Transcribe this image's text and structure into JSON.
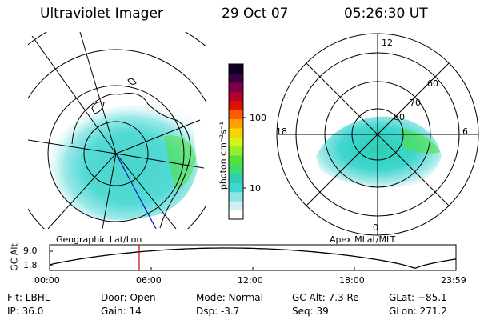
{
  "header": {
    "instrument": "Ultraviolet Imager",
    "date": "29 Oct 07",
    "time": "05:26:30 UT"
  },
  "left_map": {
    "label": "Geographic Lat/Lon"
  },
  "right_map": {
    "label": "Apex MLat/MLT",
    "mlt_labels": [
      "12",
      "18",
      "6",
      "0"
    ],
    "mlat_labels": [
      "60",
      "70",
      "80"
    ]
  },
  "colorbar": {
    "unit_label": "photon cm⁻²s⁻¹",
    "scale": "log",
    "tick_labels": [
      "100",
      "10"
    ],
    "colors": [
      "#ffffff",
      "#cfeff3",
      "#8fe6e6",
      "#3fd6cf",
      "#2ccfb2",
      "#3fdb70",
      "#52e23a",
      "#98ec2c",
      "#d8f21b",
      "#f6d400",
      "#ffa000",
      "#ff5a00",
      "#e01000",
      "#b3002e",
      "#7d0046",
      "#3a0044",
      "#10001f"
    ]
  },
  "altitude_panel": {
    "ylabel": "GC Alt",
    "y_ticks": [
      "9.0",
      "1.8"
    ],
    "x_ticks": [
      "00:00",
      "06:00",
      "12:00",
      "18:00",
      "23:59"
    ]
  },
  "footer": {
    "flt": "Flt: LBHL",
    "ip": "IP: 36.0",
    "door": "Door: Open",
    "gain": "Gain: 14",
    "mode": "Mode: Normal",
    "dsp": "Dsp:    -3.7",
    "gc_alt": "GC Alt: 7.3 Re",
    "seq": "Seq: 39",
    "glat": "GLat: −85.1",
    "glon": "GLon: 271.2"
  }
}
